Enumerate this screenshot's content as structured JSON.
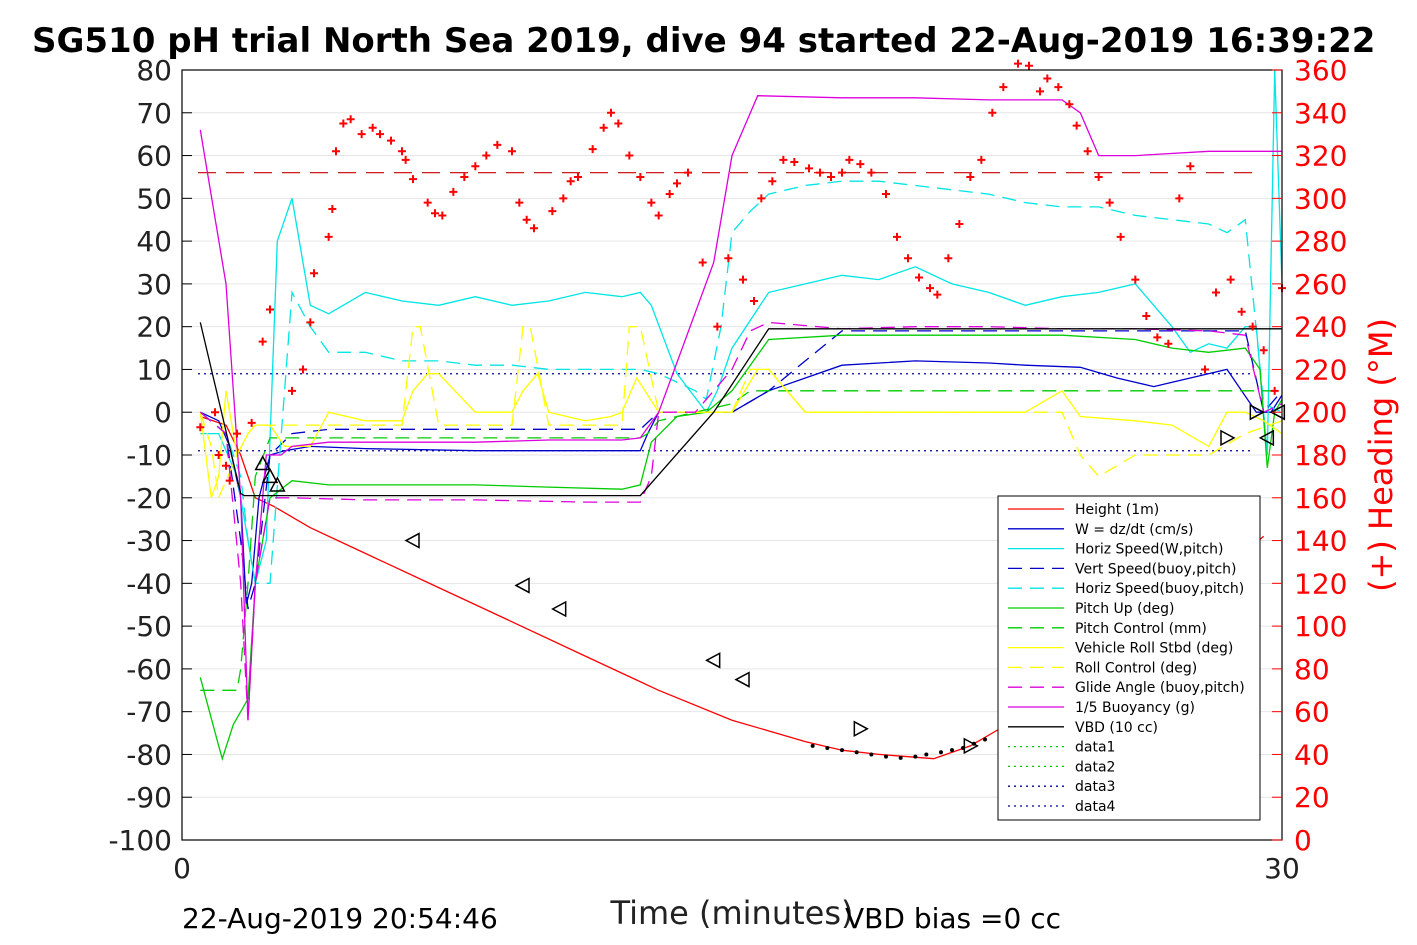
{
  "chart_data": {
    "type": "line",
    "title": "SG510 pH trial North Sea 2019, dive 94 started 22-Aug-2019 16:39:22",
    "xlabel": "Time (minutes)",
    "ylabel": "",
    "ylabel_right": "(+) Heading (°M)",
    "xlim": [
      0,
      30
    ],
    "ylim": [
      -100,
      80
    ],
    "ylim_right": [
      0,
      360
    ],
    "x_ticks": [
      "0",
      "30"
    ],
    "y_ticks": [
      "80",
      "70",
      "60",
      "50",
      "40",
      "30",
      "20",
      "10",
      "0",
      "-10",
      "-20",
      "-30",
      "-40",
      "-50",
      "-60",
      "-70",
      "-80",
      "-90",
      "-100"
    ],
    "y_ticks_right": [
      "360",
      "340",
      "320",
      "300",
      "280",
      "260",
      "240",
      "220",
      "200",
      "180",
      "160",
      "140",
      "120",
      "100",
      "80",
      "60",
      "40",
      "20",
      "0"
    ],
    "grid": true,
    "legend_position": "bottom-right",
    "footer_left": "22-Aug-2019 20:54:46",
    "footer_right": "VBD bias =0 cc",
    "series": [
      {
        "name": "Height (1m)",
        "color": "#ff0000",
        "dash": "solid",
        "x": [
          0.5,
          1.2,
          1.6,
          2.0,
          2.5,
          3.5,
          5,
          7,
          9,
          11,
          13,
          15,
          17,
          18,
          19,
          20.5,
          21.5,
          22.5,
          24,
          26,
          28,
          29.5
        ],
        "y": [
          -1,
          -3,
          -10,
          -20,
          -22,
          -27,
          -33,
          -41,
          -49,
          -57,
          -65,
          -72,
          -77,
          -79,
          -80,
          -81,
          -78,
          -73,
          -65,
          -53,
          -40,
          -29
        ]
      },
      {
        "name": "W = dz/dt (cm/s)",
        "color": "#0000cc",
        "dash": "solid",
        "x": [
          0.5,
          1.0,
          1.3,
          1.6,
          1.75,
          1.9,
          2.1,
          2.4,
          2.8,
          3.5,
          5,
          8,
          11,
          12.5,
          12.7,
          13,
          14,
          15,
          16,
          18,
          20,
          22,
          23,
          24.5,
          25.5,
          26.5,
          27.5,
          28.5,
          29.3,
          29.7,
          30
        ],
        "y": [
          0,
          -2,
          -8,
          -20,
          -45,
          -40,
          -20,
          -10,
          -9,
          -8,
          -8.5,
          -9,
          -9,
          -9,
          -5,
          0,
          0,
          0,
          5,
          11,
          12,
          11.5,
          11,
          10.5,
          8,
          6,
          8,
          10,
          0,
          0,
          4
        ]
      },
      {
        "name": "Horiz Speed(W,pitch)",
        "color": "#00e5e5",
        "dash": "solid",
        "x": [
          0.5,
          1,
          1.5,
          1.8,
          2,
          2.3,
          2.6,
          3,
          3.5,
          4,
          5,
          6,
          7,
          8,
          9,
          10,
          11,
          12,
          12.5,
          12.8,
          13.5,
          14.3,
          14.6,
          15,
          16,
          17,
          18,
          19,
          20,
          21,
          22,
          23,
          24,
          25,
          26,
          27,
          27.5,
          28,
          28.5,
          29,
          29.3,
          29.6,
          29.8,
          30
        ],
        "y": [
          -5,
          -5,
          -15,
          -30,
          -40,
          -30,
          40,
          50,
          25,
          23,
          28,
          26,
          25,
          27,
          25,
          26,
          28,
          27,
          28,
          25,
          9,
          0,
          5,
          15,
          28,
          30,
          32,
          31,
          34,
          30,
          28,
          25,
          27,
          28,
          30,
          20,
          14,
          16,
          15,
          20,
          20,
          -10,
          80,
          30
        ]
      },
      {
        "name": "Vert Speed(buoy,pitch)",
        "color": "#0000cc",
        "dash": "dashed",
        "x": [
          0.5,
          1.2,
          1.6,
          1.8,
          2,
          2.4,
          3,
          4,
          6,
          8,
          10,
          12,
          12.5,
          13,
          14,
          15,
          16,
          18,
          20,
          22,
          24,
          26,
          28,
          29,
          29.5,
          30
        ],
        "y": [
          0,
          -5,
          -30,
          -46,
          -40,
          -10,
          -5,
          -4,
          -4,
          -4,
          -4,
          -4,
          -4,
          0,
          0,
          0,
          5,
          19,
          19,
          19,
          19,
          19,
          19,
          19,
          0,
          5
        ]
      },
      {
        "name": "Horiz Speed(buoy,pitch)",
        "color": "#00e5e5",
        "dash": "dashed",
        "x": [
          0.5,
          1.2,
          1.6,
          1.8,
          2,
          2.4,
          3,
          3.5,
          4,
          5,
          6,
          7,
          8,
          9,
          10,
          11,
          12,
          12.5,
          13,
          14,
          14.3,
          14.7,
          15,
          15.5,
          16,
          17,
          18,
          19,
          20,
          21,
          22,
          23,
          24,
          25,
          26,
          27,
          28,
          28.5,
          29,
          29.5,
          30
        ],
        "y": [
          0,
          -5,
          -15,
          -30,
          -40,
          -40,
          28,
          20,
          14,
          14,
          12,
          12,
          11,
          11,
          10,
          10,
          10,
          10,
          9,
          5,
          3,
          20,
          42,
          47,
          51,
          53,
          54,
          54,
          53,
          52,
          51,
          49,
          48,
          48,
          46,
          45,
          44,
          42,
          45,
          2,
          0
        ]
      },
      {
        "name": "Pitch Up (deg)",
        "color": "#00cc00",
        "dash": "solid",
        "x": [
          0.5,
          1,
          1.1,
          1.4,
          1.6,
          1.8,
          2,
          2.4,
          3,
          4,
          6,
          8,
          10,
          12,
          12.5,
          12.8,
          13.5,
          14.3,
          15,
          16,
          18,
          20,
          22,
          24,
          26,
          27,
          28,
          29,
          29.4,
          29.6,
          29.8,
          30
        ],
        "y": [
          -62,
          -78,
          -81,
          -73,
          -70,
          -67,
          -40,
          -20,
          -16,
          -17,
          -17,
          -17,
          -17.5,
          -18,
          -17,
          -7,
          -1,
          0,
          5,
          17,
          18,
          18,
          18,
          18,
          17,
          15,
          14,
          15,
          10,
          -13,
          0,
          3
        ]
      },
      {
        "name": "Pitch Control (mm)",
        "color": "#00cc00",
        "dash": "dashed",
        "x": [
          0.5,
          1.5,
          1.6,
          1.8,
          2,
          2.4,
          3,
          5,
          8,
          11,
          12.5,
          12.7,
          13,
          14,
          15,
          15.5,
          16,
          18,
          20,
          22,
          24,
          26,
          28,
          30
        ],
        "y": [
          -65,
          -65,
          -60,
          -40,
          -15,
          -6,
          -6,
          -6,
          -6,
          -6,
          -6,
          -5,
          -2,
          0,
          2,
          5,
          5,
          5,
          5,
          5,
          5,
          5,
          5,
          5
        ]
      },
      {
        "name": "Vehicle Roll Stbd (deg)",
        "color": "#ffff00",
        "dash": "solid",
        "x": [
          0.5,
          0.8,
          1,
          1.2,
          1.5,
          1.8,
          2,
          2.4,
          2.8,
          3.5,
          4,
          5,
          6,
          6.3,
          6.7,
          7,
          8,
          9,
          9.3,
          9.7,
          10,
          11,
          11.7,
          12,
          12.4,
          13,
          14,
          15,
          15.7,
          16,
          16.5,
          17,
          18,
          20,
          21,
          22,
          23,
          24,
          24.5,
          26,
          27,
          28,
          28.5,
          29,
          29.5,
          30
        ],
        "y": [
          0,
          -20,
          -15,
          5,
          -10,
          -5,
          -3,
          -3,
          -8,
          -8,
          0,
          -2,
          -2,
          5,
          9,
          9,
          0,
          0,
          5,
          9,
          0,
          -2,
          -1,
          0,
          8,
          0,
          0,
          0,
          10,
          10,
          5,
          0,
          0,
          0,
          0,
          0,
          0,
          5,
          -1,
          -2,
          -3,
          -8,
          0,
          0,
          -2,
          -5
        ]
      },
      {
        "name": "Roll Control (deg)",
        "color": "#ffff00",
        "dash": "dashed",
        "x": [
          0.5,
          0.8,
          1,
          1.5,
          1.8,
          2,
          2.4,
          3,
          5,
          6,
          6.3,
          6.5,
          7,
          9,
          9.3,
          9.5,
          10,
          12,
          12.2,
          12.5,
          13,
          14,
          15,
          15.5,
          16,
          17,
          18,
          20,
          22,
          24,
          24.5,
          25,
          26,
          28,
          29,
          30
        ],
        "y": [
          0,
          -8,
          -20,
          -10,
          -5,
          -3,
          -3,
          -3,
          -3,
          -3,
          20,
          20,
          -3,
          -3,
          20,
          20,
          -3,
          -3,
          20,
          20,
          0,
          0,
          0,
          10,
          10,
          0,
          0,
          0,
          0,
          0,
          -10,
          -15,
          -10,
          -10,
          -5,
          -2
        ]
      },
      {
        "name": "Glide Angle (buoy,pitch)",
        "color": "#dd00dd",
        "dash": "dashed",
        "x": [
          0.5,
          1.2,
          1.6,
          1.8,
          2,
          2.4,
          3,
          5,
          8,
          11,
          12.5,
          12.8,
          13,
          14,
          15,
          15.5,
          16,
          18,
          20,
          22,
          24,
          26,
          28,
          29,
          29.5,
          30
        ],
        "y": [
          0,
          -5,
          -40,
          -72,
          -40,
          -20,
          -20,
          -20.5,
          -20.5,
          -21,
          -21,
          -15,
          0,
          0,
          10,
          19,
          21,
          19.5,
          20,
          20,
          19.5,
          19.5,
          19,
          18,
          0,
          2
        ]
      },
      {
        "name": "1/5 Buoyancy (g)",
        "color": "#dd00dd",
        "dash": "solid",
        "x": [
          0.5,
          1.2,
          1.6,
          1.8,
          2,
          2.3,
          2.7,
          3,
          4,
          6,
          8,
          10,
          12,
          12.5,
          13,
          14.5,
          15,
          15.7,
          18,
          20,
          22,
          24,
          24.5,
          25,
          26,
          28,
          30
        ],
        "y": [
          66,
          30,
          -20,
          -72,
          -40,
          -10,
          -10,
          -8,
          -7,
          -7,
          -7,
          -6.5,
          -6.5,
          -6,
          0,
          35,
          60,
          74,
          73.5,
          73.5,
          73,
          73,
          70,
          60,
          60,
          61,
          61
        ]
      },
      {
        "name": "VBD (10 cc)",
        "color": "#000000",
        "dash": "solid",
        "x": [
          0.5,
          1.6,
          1.7,
          2,
          4,
          8,
          12.5,
          14.5,
          16,
          18,
          20,
          22,
          24,
          26,
          28,
          30
        ],
        "y": [
          21,
          -19,
          -19.5,
          -19.5,
          -19.5,
          -19.5,
          -19.5,
          0,
          19.5,
          19.5,
          19.5,
          19.5,
          19.5,
          19.5,
          19.5,
          19.5
        ]
      },
      {
        "name": "data1",
        "color": "#00cc00",
        "dash": "dotted",
        "x": [],
        "y": []
      },
      {
        "name": "data2",
        "color": "#00cc00",
        "dash": "dotted",
        "x": [],
        "y": []
      },
      {
        "name": "data3",
        "color": "#000099",
        "dash": "dotted",
        "x": [],
        "y": []
      },
      {
        "name": "data4",
        "color": "#000099",
        "dash": "dotted",
        "x": [],
        "y": []
      }
    ],
    "reference_lines": [
      {
        "axis": "right",
        "value": 312,
        "color": "#cc0000",
        "dash": "longdash"
      },
      {
        "axis": "left",
        "value": 9,
        "color": "#000099",
        "dash": "dotted"
      },
      {
        "axis": "left",
        "value": -9,
        "color": "#000099",
        "dash": "dotted"
      }
    ],
    "heading_points": {
      "axis": "right",
      "color": "#ff0000",
      "x": [
        0.5,
        0.9,
        1.0,
        1.2,
        1.3,
        1.5,
        1.9,
        2.2,
        2.4,
        3.0,
        3.3,
        3.5,
        3.6,
        4.0,
        4.1,
        4.2,
        4.4,
        4.6,
        4.9,
        5.2,
        5.4,
        5.7,
        6.0,
        6.1,
        6.3,
        6.7,
        6.9,
        7.1,
        7.4,
        7.7,
        8.0,
        8.3,
        8.6,
        9.0,
        9.2,
        9.4,
        9.6,
        10.1,
        10.4,
        10.6,
        10.8,
        11.2,
        11.5,
        11.7,
        11.9,
        12.2,
        12.5,
        12.8,
        13.0,
        13.3,
        13.5,
        13.8,
        14.2,
        14.6,
        14.9,
        15.3,
        15.6,
        15.8,
        16.1,
        16.4,
        16.7,
        17.1,
        17.4,
        17.7,
        18.0,
        18.2,
        18.5,
        18.8,
        19.2,
        19.5,
        19.8,
        20.1,
        20.4,
        20.6,
        20.9,
        21.2,
        21.5,
        21.8,
        22.1,
        22.4,
        22.8,
        23.1,
        23.4,
        23.6,
        23.9,
        24.2,
        24.4,
        24.7,
        25.0,
        25.3,
        25.6,
        26.0,
        26.3,
        26.6,
        26.9,
        27.2,
        27.5,
        27.9,
        28.2,
        28.6,
        28.9,
        29.2,
        29.5,
        29.8,
        30.0
      ],
      "y": [
        193,
        200,
        180,
        175,
        168,
        190,
        195,
        233,
        248,
        210,
        220,
        242,
        265,
        282,
        295,
        322,
        335,
        337,
        330,
        333,
        330,
        327,
        322,
        318,
        309,
        298,
        293,
        292,
        303,
        310,
        315,
        320,
        325,
        322,
        298,
        290,
        286,
        294,
        300,
        308,
        310,
        323,
        333,
        340,
        335,
        320,
        310,
        298,
        292,
        302,
        307,
        312,
        270,
        240,
        272,
        262,
        252,
        300,
        308,
        318,
        317,
        314,
        312,
        310,
        312,
        318,
        316,
        312,
        302,
        282,
        272,
        263,
        258,
        255,
        272,
        288,
        310,
        318,
        340,
        352,
        363,
        362,
        350,
        356,
        352,
        344,
        334,
        322,
        310,
        298,
        282,
        262,
        245,
        235,
        232,
        300,
        315,
        220,
        256,
        262,
        247,
        240,
        229,
        210,
        258
      ]
    },
    "markers": {
      "triangle_left": {
        "x": [
          6.3,
          9.3,
          10.3,
          14.5,
          15.3,
          23.3,
          25.8,
          29.6,
          29.9
        ],
        "y": [
          -30,
          -40.5,
          -46,
          -58,
          -62.5,
          -40,
          -31,
          -6,
          0
        ]
      },
      "triangle_right": {
        "x": [
          18.5,
          21.5,
          22.5,
          24.5,
          27.5,
          28.5,
          29.3
        ],
        "y": [
          -74,
          -78,
          -80,
          -75,
          -68,
          -6,
          0
        ]
      },
      "triangle_up": {
        "x": [
          2.2,
          2.4,
          2.6
        ],
        "y": [
          -12,
          -15,
          -17
        ]
      },
      "dots": {
        "x": [
          17.2,
          17.6,
          18.0,
          18.4,
          18.8,
          19.2,
          19.6,
          20.0,
          20.3,
          20.7,
          21.0,
          21.3,
          21.6,
          21.9
        ],
        "y": [
          -78,
          -78.5,
          -79,
          -79.5,
          -80,
          -80.5,
          -80.8,
          -80.5,
          -80,
          -79.5,
          -79,
          -78.5,
          -77.5,
          -76.5
        ]
      }
    }
  }
}
